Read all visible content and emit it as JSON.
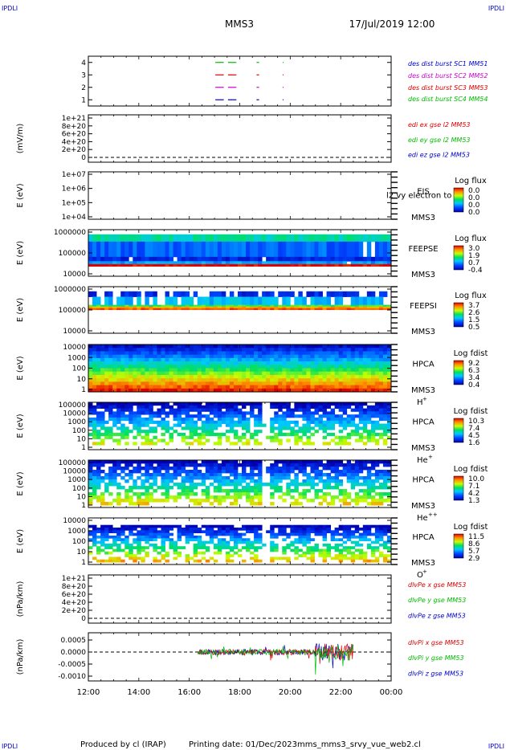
{
  "header": {
    "corner_tl": "IPDLI",
    "corner_tr": "IPDLI",
    "corner_bl": "IPDLI",
    "corner_br": "IPDLI",
    "spacecraft": "MMS3",
    "datetime": "17/Jul/2019 12:00"
  },
  "footer": {
    "produced": "Produced by cl (IRAP)",
    "printing": "Printing date: 01/Dec/2023",
    "script": "mms_mms3_srvy_vue_web2.cl"
  },
  "colors": {
    "blue": "#0000cc",
    "magenta": "#cc00cc",
    "red": "#dd0000",
    "green": "#00bb00"
  },
  "chart_data": [
    {
      "type": "line",
      "panel": "burst",
      "ylim": [
        0.5,
        4.5
      ],
      "yticks": [
        "4",
        "3",
        "2",
        "1"
      ],
      "x": [
        "12:00",
        "14:00",
        "16:00",
        "18:00",
        "20:00",
        "22:00",
        "00:00"
      ],
      "series": [
        {
          "name": "des dist burst SC1 MM51",
          "value": 1,
          "color": "#0000cc"
        },
        {
          "name": "des dist burst SC2 MM52",
          "value": 2,
          "color": "#cc00cc"
        },
        {
          "name": "des dist burst SC3 MM53",
          "value": 3,
          "color": "#dd0000"
        },
        {
          "name": "des dist burst SC4 MM54",
          "value": 4,
          "color": "#00bb00"
        }
      ],
      "intervals": [
        [
          "17:02",
          "17:22"
        ],
        [
          "17:32",
          "17:52"
        ],
        [
          "18:40",
          "18:46"
        ],
        [
          "19:42",
          "19:44"
        ]
      ]
    },
    {
      "type": "line",
      "panel": "edi",
      "ylabel": "(mV/m)",
      "ylim": [
        0,
        1e+21
      ],
      "yticks": [
        "1e+21",
        "8e+20",
        "6e+20",
        "4e+20",
        "2e+20",
        "0"
      ],
      "series": [
        {
          "name": "edi ex gse l2 MM53",
          "color": "#dd0000"
        },
        {
          "name": "edi ey gse l2 MM53",
          "color": "#00bb00"
        },
        {
          "name": "edi ez gse l2 MM53",
          "color": "#0000cc"
        }
      ]
    },
    {
      "type": "heatmap",
      "panel": "eis",
      "ylabel": "E (eV)",
      "yticks": [
        "1e+07",
        "1e+06",
        "1e+05",
        "1e+04"
      ],
      "instrument": [
        "EIS",
        "MMS3"
      ],
      "overlay": "l2 vy electron to",
      "colorbar": {
        "label": "Log flux",
        "ticks": [
          "0.0",
          "0.0",
          "0.0",
          "0.0"
        ]
      }
    },
    {
      "type": "heatmap",
      "panel": "feepse",
      "ylabel": "E (eV)",
      "yticks": [
        "1000000",
        "100000",
        "10000"
      ],
      "instrument": [
        "FEEPSE",
        "MMS3"
      ],
      "colorbar": {
        "label": "Log flux",
        "ticks": [
          "3.0",
          "1.9",
          "0.7",
          "-0.4"
        ]
      }
    },
    {
      "type": "heatmap",
      "panel": "feepsi",
      "ylabel": "E (eV)",
      "yticks": [
        "1000000",
        "100000",
        "10000"
      ],
      "instrument": [
        "FEEPSI",
        "MMS3"
      ],
      "colorbar": {
        "label": "Log flux",
        "ticks": [
          "3.7",
          "2.6",
          "1.5",
          "0.5"
        ]
      }
    },
    {
      "type": "heatmap",
      "panel": "hpca_h",
      "ylabel": "E (eV)",
      "yticks": [
        "10000",
        "1000",
        "100",
        "10",
        "1"
      ],
      "instrument": [
        "HPCA",
        "MMS3"
      ],
      "species": "H",
      "species_sup": "+",
      "colorbar": {
        "label": "Log fdist",
        "ticks": [
          "9.2",
          "6.3",
          "3.4",
          "0.4"
        ]
      }
    },
    {
      "type": "heatmap",
      "panel": "hpca_he",
      "ylabel": "E (eV)",
      "yticks": [
        "100000",
        "10000",
        "1000",
        "100",
        "10",
        "1"
      ],
      "instrument": [
        "HPCA",
        "MMS3"
      ],
      "species": "He",
      "species_sup": "+",
      "colorbar": {
        "label": "Log fdist",
        "ticks": [
          "10.3",
          "7.4",
          "4.5",
          "1.6"
        ]
      }
    },
    {
      "type": "heatmap",
      "panel": "hpca_hepp",
      "ylabel": "E (eV)",
      "yticks": [
        "100000",
        "10000",
        "1000",
        "100",
        "10",
        "1"
      ],
      "instrument": [
        "HPCA",
        "MMS3"
      ],
      "species": "He",
      "species_sup": "++",
      "colorbar": {
        "label": "Log fdist",
        "ticks": [
          "10.0",
          "7.1",
          "4.2",
          "1.3"
        ]
      }
    },
    {
      "type": "heatmap",
      "panel": "hpca_o",
      "ylabel": "E (eV)",
      "yticks": [
        "10000",
        "1000",
        "100",
        "10",
        "1"
      ],
      "instrument": [
        "HPCA",
        "MMS3"
      ],
      "species": "O",
      "species_sup": "+",
      "colorbar": {
        "label": "Log fdist",
        "ticks": [
          "11.5",
          "8.6",
          "5.7",
          "2.9"
        ]
      }
    },
    {
      "type": "line",
      "panel": "divpe",
      "ylabel": "(nPa/km)",
      "ylim": [
        0,
        1e+21
      ],
      "yticks": [
        "1e+21",
        "8e+20",
        "6e+20",
        "4e+20",
        "2e+20",
        "0"
      ],
      "series": [
        {
          "name": "dlvPe x gse MM53",
          "color": "#dd0000"
        },
        {
          "name": "dlvPe y gse MM53",
          "color": "#00bb00"
        },
        {
          "name": "dlvPe z gse MM53",
          "color": "#0000cc"
        }
      ]
    },
    {
      "type": "line",
      "panel": "divpi",
      "ylabel": "(nPa/km)",
      "ylim": [
        -0.0012,
        0.0008
      ],
      "yticks": [
        "0.0005",
        "0.0000",
        "-0.0005",
        "-0.0010"
      ],
      "x": [
        "12:00",
        "14:00",
        "16:00",
        "18:00",
        "20:00",
        "22:00",
        "00:00"
      ],
      "data_span": [
        "16:20",
        "22:30"
      ],
      "series": [
        {
          "name": "dlvPi x gse MM53",
          "color": "#dd0000"
        },
        {
          "name": "dlvPi y gse MM53",
          "color": "#00bb00"
        },
        {
          "name": "dlvPi z gse MM53",
          "color": "#0000cc"
        }
      ]
    }
  ]
}
